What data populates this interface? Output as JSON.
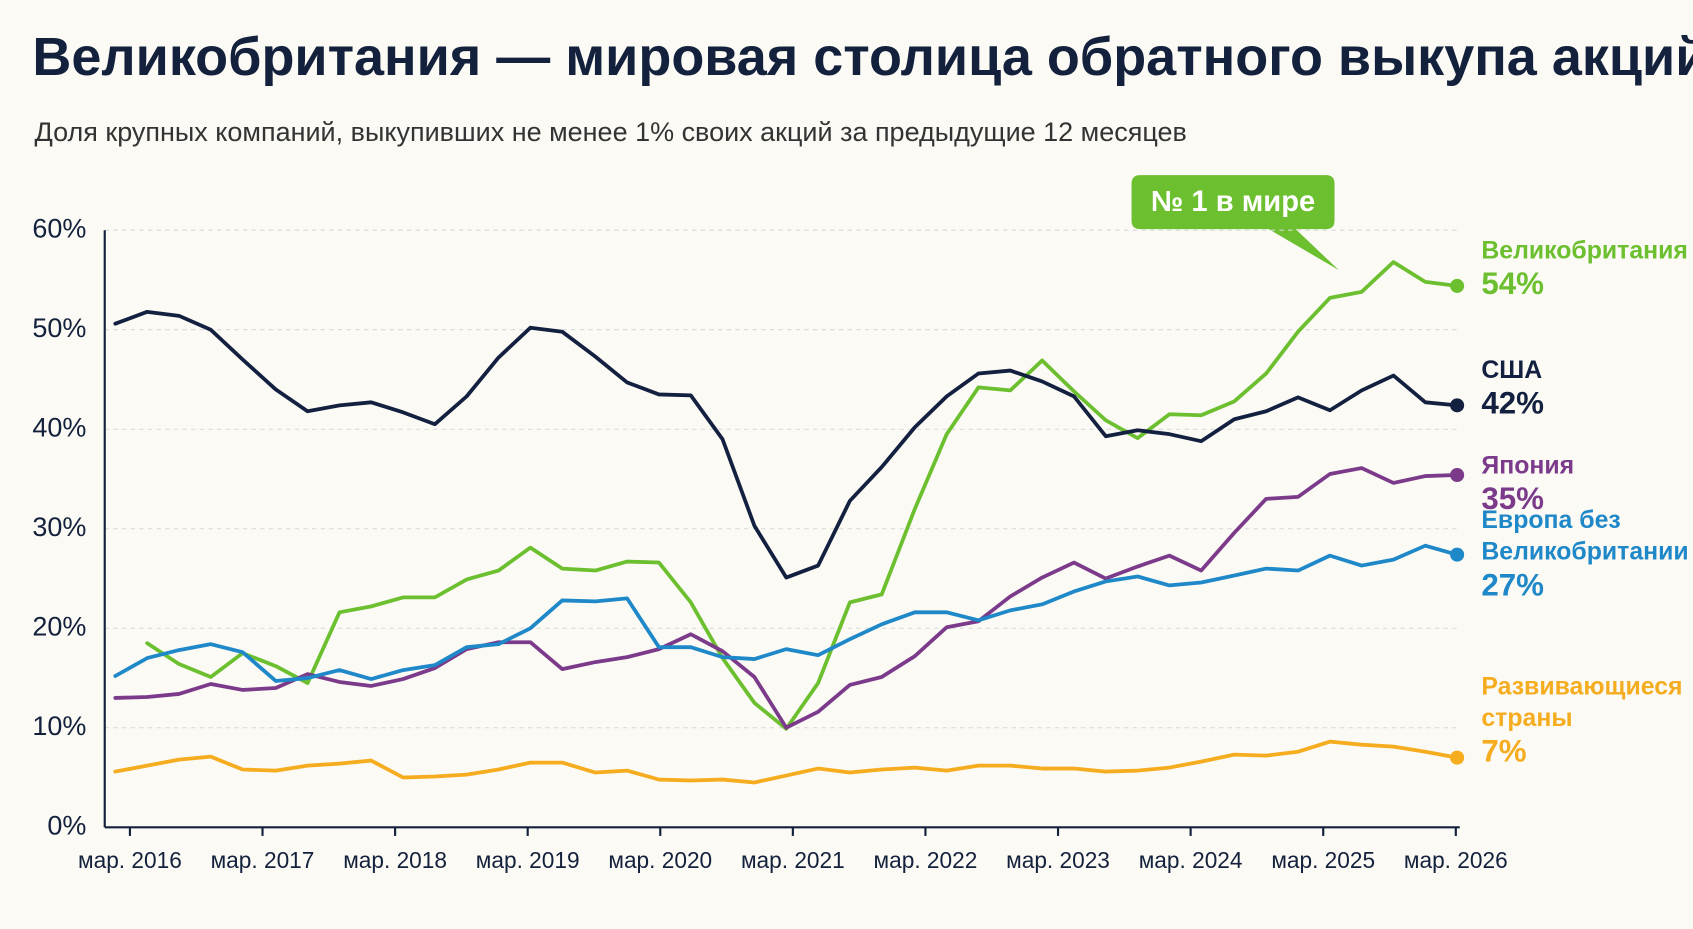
{
  "chart_data": {
    "type": "line",
    "title": "Великобритания — мировая столица обратного выкупа акций",
    "subtitle": "Доля крупных компаний, выкупивших не менее 1% своих акций за предыдущие 12 месяцев",
    "annotation": "№ 1 в мире",
    "x": [
      2016.06,
      2016.3,
      2016.54,
      2016.78,
      2017.02,
      2017.27,
      2017.51,
      2017.75,
      2017.99,
      2018.23,
      2018.47,
      2018.71,
      2018.95,
      2019.19,
      2019.43,
      2019.68,
      2019.92,
      2020.16,
      2020.4,
      2020.64,
      2020.88,
      2021.12,
      2021.36,
      2021.6,
      2021.84,
      2022.09,
      2022.33,
      2022.57,
      2022.81,
      2023.05,
      2023.29,
      2023.53,
      2023.77,
      2024.01,
      2024.25,
      2024.5,
      2024.74,
      2024.98,
      2025.22,
      2025.46,
      2025.7,
      2025.94,
      2026.18
    ],
    "xlim": [
      2015.98,
      2026.2
    ],
    "xticks": [
      {
        "value": 2016.17,
        "label": "мар. 2016"
      },
      {
        "value": 2017.17,
        "label": "мар. 2017"
      },
      {
        "value": 2018.17,
        "label": "мар. 2018"
      },
      {
        "value": 2019.17,
        "label": "мар. 2019"
      },
      {
        "value": 2020.17,
        "label": "мар. 2020"
      },
      {
        "value": 2021.17,
        "label": "мар. 2021"
      },
      {
        "value": 2022.17,
        "label": "мар. 2022"
      },
      {
        "value": 2023.17,
        "label": "мар. 2023"
      },
      {
        "value": 2024.17,
        "label": "мар. 2024"
      },
      {
        "value": 2025.17,
        "label": "мар. 2025"
      },
      {
        "value": 2026.17,
        "label": "мар. 2026"
      }
    ],
    "ylim": [
      0,
      60
    ],
    "yticks": [
      {
        "value": 0,
        "label": "0%"
      },
      {
        "value": 10,
        "label": "10%"
      },
      {
        "value": 20,
        "label": "20%"
      },
      {
        "value": 30,
        "label": "30%"
      },
      {
        "value": 40,
        "label": "40%"
      },
      {
        "value": 50,
        "label": "50%"
      },
      {
        "value": 60,
        "label": "60%"
      }
    ],
    "grid": true,
    "series": [
      {
        "name": "Великобритания",
        "color": "#6cbf2e",
        "last_value_label": "54%",
        "values": [
          null,
          18.5,
          16.4,
          15.1,
          17.5,
          16.2,
          14.5,
          21.6,
          22.2,
          23.1,
          23.1,
          24.9,
          25.8,
          28.1,
          26,
          25.8,
          26.7,
          26.6,
          22.6,
          17,
          12.5,
          9.9,
          14.5,
          22.6,
          23.4,
          32,
          39.5,
          44.2,
          43.9,
          46.9,
          43.8,
          40.9,
          39.1,
          41.5,
          41.4,
          42.8,
          45.6,
          49.8,
          53.2,
          53.8,
          56.8,
          54.8,
          54.4
        ]
      },
      {
        "name": "США",
        "color": "#13203f",
        "last_value_label": "42%",
        "values": [
          50.6,
          51.8,
          51.4,
          50,
          47,
          44,
          41.8,
          42.4,
          42.7,
          41.7,
          40.5,
          43.3,
          47.2,
          50.2,
          49.8,
          47.3,
          44.7,
          43.5,
          43.4,
          39,
          30.3,
          25.1,
          26.3,
          32.8,
          36.2,
          40.2,
          43.3,
          45.6,
          45.9,
          44.8,
          43.3,
          39.3,
          39.9,
          39.5,
          38.8,
          41,
          41.8,
          43.2,
          41.9,
          43.9,
          45.4,
          42.7,
          42.4
        ]
      },
      {
        "name": "Япония",
        "color": "#7b3a8a",
        "last_value_label": "35%",
        "values": [
          13.0,
          13.1,
          13.4,
          14.4,
          13.8,
          14.0,
          15.4,
          14.6,
          14.2,
          14.9,
          16.0,
          17.9,
          18.6,
          18.6,
          15.9,
          16.6,
          17.1,
          17.9,
          19.4,
          17.7,
          15.1,
          10.0,
          11.6,
          14.3,
          15.1,
          17.2,
          20.1,
          20.7,
          23.2,
          25.1,
          26.6,
          25.0,
          26.2,
          27.3,
          25.8,
          29.6,
          33.0,
          33.2,
          35.5,
          36.1,
          34.6,
          35.3,
          35.4
        ]
      },
      {
        "name": "Европа без\nВеликобритании",
        "color": "#1f88c8",
        "last_value_label": "27%",
        "values": [
          15.2,
          17,
          17.8,
          18.4,
          17.6,
          14.7,
          15,
          15.8,
          14.9,
          15.8,
          16.3,
          18.1,
          18.4,
          20,
          22.8,
          22.7,
          23,
          18.1,
          18.1,
          17.1,
          16.9,
          17.9,
          17.3,
          18.9,
          20.4,
          21.6,
          21.6,
          20.8,
          21.8,
          22.4,
          23.7,
          24.7,
          25.2,
          24.3,
          24.6,
          25.3,
          26,
          25.8,
          27.3,
          26.3,
          26.9,
          28.3,
          27.4
        ]
      },
      {
        "name": "Развивающиеся\nстраны",
        "color": "#f5ac1e",
        "last_value_label": "7%",
        "values": [
          5.6,
          6.2,
          6.8,
          7.1,
          5.8,
          5.7,
          6.2,
          6.4,
          6.7,
          5.0,
          5.1,
          5.3,
          5.8,
          6.5,
          6.5,
          5.5,
          5.7,
          4.8,
          4.7,
          4.8,
          4.5,
          5.2,
          5.9,
          5.5,
          5.8,
          6.0,
          5.7,
          6.2,
          6.2,
          5.9,
          5.9,
          5.6,
          5.7,
          6.0,
          6.6,
          7.3,
          7.2,
          7.6,
          8.6,
          8.3,
          8.1,
          7.6,
          7.0
        ]
      }
    ]
  }
}
